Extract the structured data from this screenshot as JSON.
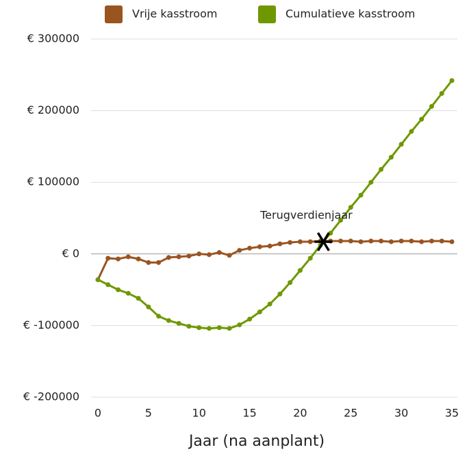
{
  "chart_data": {
    "type": "line",
    "xlabel": "Jaar (na aanplant)",
    "x": [
      0,
      1,
      2,
      3,
      4,
      5,
      6,
      7,
      8,
      9,
      10,
      11,
      12,
      13,
      14,
      15,
      16,
      17,
      18,
      19,
      20,
      21,
      22,
      23,
      24,
      25,
      26,
      27,
      28,
      29,
      30,
      31,
      32,
      33,
      34,
      35
    ],
    "series": [
      {
        "name": "Vrije kasstroom",
        "color": "#9a5420",
        "values": [
          -36000,
          -6000,
          -7000,
          -4000,
          -7000,
          -12000,
          -12000,
          -5000,
          -4000,
          -3000,
          0,
          -1000,
          2000,
          -2000,
          5000,
          8000,
          10000,
          11000,
          14000,
          16000,
          17000,
          17000,
          18000,
          18000,
          18000,
          18000,
          17000,
          18000,
          18000,
          17000,
          18000,
          18000,
          17000,
          18000,
          18000,
          17000
        ]
      },
      {
        "name": "Cumulatieve kasstroom",
        "color": "#6f9800",
        "values": [
          -36000,
          -43000,
          -50000,
          -55000,
          -62000,
          -74000,
          -87000,
          -93000,
          -97000,
          -101000,
          -103000,
          -104000,
          -103000,
          -104000,
          -99000,
          -91000,
          -81000,
          -70000,
          -56000,
          -40000,
          -23000,
          -6000,
          12000,
          29000,
          47000,
          65000,
          82000,
          100000,
          118000,
          135000,
          153000,
          171000,
          188000,
          206000,
          224000,
          242000
        ]
      }
    ],
    "annotations": [
      {
        "text": "Terugverdienjaar",
        "x": 22.3,
        "y": 17000
      }
    ],
    "xlim": [
      0,
      35
    ],
    "xticks": [
      0,
      5,
      10,
      15,
      20,
      25,
      30,
      35
    ],
    "ylim": [
      -200000,
      300000
    ],
    "yticks": [
      {
        "value": -200000,
        "label": "€ -200000"
      },
      {
        "value": -100000,
        "label": "€ -100000"
      },
      {
        "value": 0,
        "label": "€ 0"
      },
      {
        "value": 100000,
        "label": "€ 100000"
      },
      {
        "value": 200000,
        "label": "€ 200000"
      },
      {
        "value": 300000,
        "label": "€ 300000"
      }
    ],
    "grid": true,
    "legend": "top"
  }
}
